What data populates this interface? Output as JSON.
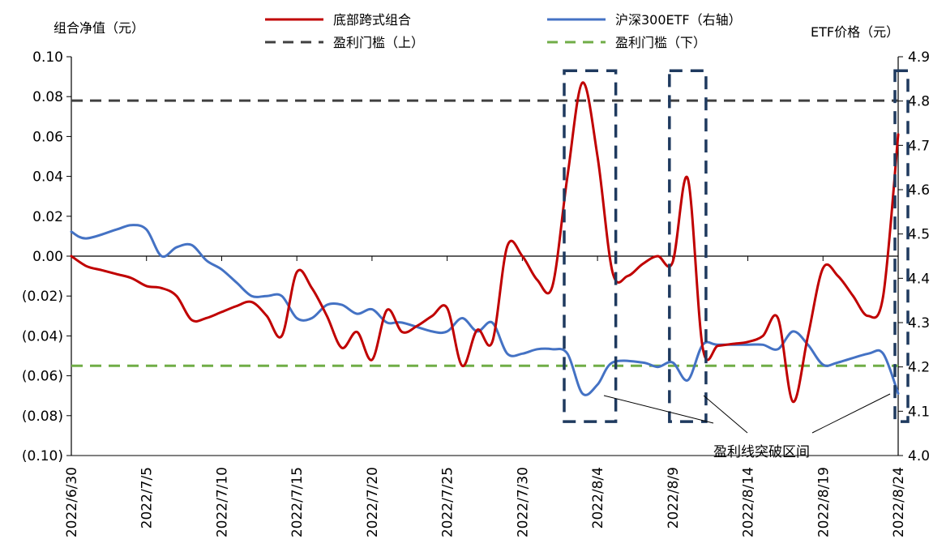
{
  "chart_data": {
    "type": "line",
    "left_axis": {
      "title": "组合净值（元）",
      "ylim": [
        -0.1,
        0.1
      ],
      "ticks": [
        0.1,
        0.08,
        0.06,
        0.04,
        0.02,
        0.0,
        -0.02,
        -0.04,
        -0.06,
        -0.08,
        -0.1
      ],
      "tick_labels": [
        "0.10",
        "0.08",
        "0.06",
        "0.04",
        "0.02",
        "0.00",
        "(0.02)",
        "(0.04)",
        "(0.06)",
        "(0.08)",
        "(0.10)"
      ]
    },
    "right_axis": {
      "title": "ETF价格（元）",
      "ylim": [
        4.0,
        4.9
      ],
      "ticks": [
        4.9,
        4.8,
        4.7,
        4.6,
        4.5,
        4.4,
        4.3,
        4.2,
        4.1,
        4.0
      ],
      "tick_labels": [
        "4.9",
        "4.8",
        "4.7",
        "4.6",
        "4.5",
        "4.4",
        "4.3",
        "4.2",
        "4.1",
        "4.0"
      ]
    },
    "x_axis": {
      "range": [
        "2022/6/30",
        "2022/8/24"
      ],
      "tick_labels": [
        "2022/6/30",
        "2022/7/5",
        "2022/7/10",
        "2022/7/15",
        "2022/7/20",
        "2022/7/25",
        "2022/7/30",
        "2022/8/4",
        "2022/8/9",
        "2022/8/14",
        "2022/8/19",
        "2022/8/24"
      ]
    },
    "series": [
      {
        "name": "底部跨式组合",
        "axis": "left",
        "color": "#c00000",
        "points": [
          [
            "2022/6/30",
            0.0
          ],
          [
            "2022/7/1",
            -0.005
          ],
          [
            "2022/7/2",
            -0.007
          ],
          [
            "2022/7/3",
            -0.009
          ],
          [
            "2022/7/4",
            -0.011
          ],
          [
            "2022/7/5",
            -0.015
          ],
          [
            "2022/7/6",
            -0.016
          ],
          [
            "2022/7/7",
            -0.02
          ],
          [
            "2022/7/8",
            -0.032
          ],
          [
            "2022/7/9",
            -0.031
          ],
          [
            "2022/7/10",
            -0.028
          ],
          [
            "2022/7/11",
            -0.025
          ],
          [
            "2022/7/12",
            -0.023
          ],
          [
            "2022/7/13",
            -0.03
          ],
          [
            "2022/7/14",
            -0.04
          ],
          [
            "2022/7/15",
            -0.008
          ],
          [
            "2022/7/16",
            -0.016
          ],
          [
            "2022/7/17",
            -0.03
          ],
          [
            "2022/7/18",
            -0.046
          ],
          [
            "2022/7/19",
            -0.038
          ],
          [
            "2022/7/20",
            -0.052
          ],
          [
            "2022/7/21",
            -0.027
          ],
          [
            "2022/7/22",
            -0.038
          ],
          [
            "2022/7/23",
            -0.035
          ],
          [
            "2022/7/24",
            -0.03
          ],
          [
            "2022/7/25",
            -0.026
          ],
          [
            "2022/7/26",
            -0.055
          ],
          [
            "2022/7/27",
            -0.037
          ],
          [
            "2022/7/28",
            -0.043
          ],
          [
            "2022/7/29",
            0.005
          ],
          [
            "2022/7/30",
            0.0
          ],
          [
            "2022/7/31",
            -0.012
          ],
          [
            "2022/8/1",
            -0.015
          ],
          [
            "2022/8/2",
            0.04
          ],
          [
            "2022/8/3",
            0.087
          ],
          [
            "2022/8/4",
            0.05
          ],
          [
            "2022/8/5",
            -0.008
          ],
          [
            "2022/8/6",
            -0.01
          ],
          [
            "2022/8/7",
            -0.004
          ],
          [
            "2022/8/8",
            0.0
          ],
          [
            "2022/8/9",
            -0.003
          ],
          [
            "2022/8/10",
            0.039
          ],
          [
            "2022/8/11",
            -0.046
          ],
          [
            "2022/8/12",
            -0.045
          ],
          [
            "2022/8/13",
            -0.044
          ],
          [
            "2022/8/14",
            -0.043
          ],
          [
            "2022/8/15",
            -0.04
          ],
          [
            "2022/8/16",
            -0.031
          ],
          [
            "2022/8/17",
            -0.073
          ],
          [
            "2022/8/18",
            -0.04
          ],
          [
            "2022/8/19",
            -0.006
          ],
          [
            "2022/8/20",
            -0.01
          ],
          [
            "2022/8/21",
            -0.02
          ],
          [
            "2022/8/22",
            -0.03
          ],
          [
            "2022/8/23",
            -0.02
          ],
          [
            "2022/8/24",
            0.061
          ]
        ]
      },
      {
        "name": "沪深300ETF（右轴）",
        "axis": "right",
        "color": "#4472c4",
        "points": [
          [
            "2022/6/30",
            4.505
          ],
          [
            "2022/7/1",
            4.49
          ],
          [
            "2022/7/3",
            4.51
          ],
          [
            "2022/7/4",
            4.52
          ],
          [
            "2022/7/5",
            4.51
          ],
          [
            "2022/7/6",
            4.45
          ],
          [
            "2022/7/7",
            4.47
          ],
          [
            "2022/7/8",
            4.475
          ],
          [
            "2022/7/9",
            4.44
          ],
          [
            "2022/7/10",
            4.42
          ],
          [
            "2022/7/11",
            4.39
          ],
          [
            "2022/7/12",
            4.36
          ],
          [
            "2022/7/13",
            4.36
          ],
          [
            "2022/7/14",
            4.36
          ],
          [
            "2022/7/15",
            4.31
          ],
          [
            "2022/7/16",
            4.31
          ],
          [
            "2022/7/17",
            4.34
          ],
          [
            "2022/7/18",
            4.34
          ],
          [
            "2022/7/19",
            4.32
          ],
          [
            "2022/7/20",
            4.33
          ],
          [
            "2022/7/21",
            4.3
          ],
          [
            "2022/7/22",
            4.3
          ],
          [
            "2022/7/24",
            4.28
          ],
          [
            "2022/7/25",
            4.28
          ],
          [
            "2022/7/26",
            4.31
          ],
          [
            "2022/7/27",
            4.28
          ],
          [
            "2022/7/28",
            4.3
          ],
          [
            "2022/7/29",
            4.23
          ],
          [
            "2022/7/30",
            4.23
          ],
          [
            "2022/7/31",
            4.24
          ],
          [
            "2022/8/1",
            4.24
          ],
          [
            "2022/8/2",
            4.23
          ],
          [
            "2022/8/3",
            4.14
          ],
          [
            "2022/8/4",
            4.16
          ],
          [
            "2022/8/5",
            4.21
          ],
          [
            "2022/8/7",
            4.21
          ],
          [
            "2022/8/8",
            4.2
          ],
          [
            "2022/8/9",
            4.21
          ],
          [
            "2022/8/10",
            4.17
          ],
          [
            "2022/8/11",
            4.25
          ],
          [
            "2022/8/12",
            4.25
          ],
          [
            "2022/8/14",
            4.25
          ],
          [
            "2022/8/15",
            4.25
          ],
          [
            "2022/8/16",
            4.24
          ],
          [
            "2022/8/17",
            4.28
          ],
          [
            "2022/8/18",
            4.25
          ],
          [
            "2022/8/19",
            4.205
          ],
          [
            "2022/8/20",
            4.21
          ],
          [
            "2022/8/22",
            4.23
          ],
          [
            "2022/8/23",
            4.23
          ],
          [
            "2022/8/24",
            4.14
          ]
        ]
      },
      {
        "name": "盈利门槛（上）",
        "axis": "left",
        "color": "#404040",
        "dashed": true,
        "points": [
          [
            "2022/6/30",
            0.078
          ],
          [
            "2022/8/24",
            0.078
          ]
        ]
      },
      {
        "name": "盈利门槛（下）",
        "axis": "left",
        "color": "#70ad47",
        "dashed": true,
        "points": [
          [
            "2022/6/30",
            -0.055
          ],
          [
            "2022/8/24",
            -0.055
          ]
        ]
      }
    ],
    "legend": {
      "placement": "top",
      "entries": [
        "底部跨式组合",
        "沪深300ETF（右轴）",
        "盈利门槛（上）",
        "盈利门槛（下）"
      ]
    },
    "highlight_boxes": [
      {
        "x_start": "2022/8/2",
        "x_end": "2022/8/5",
        "y_top": 0.093,
        "y_bottom": -0.083
      },
      {
        "x_start": "2022/8/9",
        "x_end": "2022/8/11",
        "y_top": 0.093,
        "y_bottom": -0.083
      },
      {
        "x_start": "2022/8/24",
        "x_end": "2022/8/25",
        "y_top": 0.093,
        "y_bottom": -0.083
      }
    ],
    "annotation": {
      "text": "盈利线突破区间"
    },
    "grid": false
  }
}
